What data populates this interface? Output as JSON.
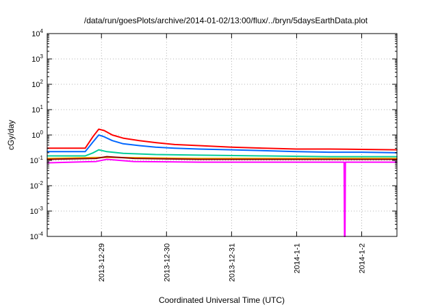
{
  "chart_data": {
    "type": "line",
    "title": "/data/run/goesPlots/archive/2014-01-02/13:00/flux/../bryn/5daysEarthData.plot",
    "xlabel": "Coordinated Universal Time (UTC)",
    "ylabel": "cGy/day",
    "yscale": "log",
    "ylim": [
      0.0001,
      10000
    ],
    "y_ticks": [
      {
        "base": "10",
        "exp": "-4"
      },
      {
        "base": "10",
        "exp": "-3"
      },
      {
        "base": "10",
        "exp": "-2"
      },
      {
        "base": "10",
        "exp": "-1"
      },
      {
        "base": "10",
        "exp": "0"
      },
      {
        "base": "10",
        "exp": "1"
      },
      {
        "base": "10",
        "exp": "2"
      },
      {
        "base": "10",
        "exp": "3"
      },
      {
        "base": "10",
        "exp": "4"
      }
    ],
    "xlim": [
      "2013-12-28 04:00",
      "2014-01-02 13:00"
    ],
    "x_ticks": [
      "2013-12-29",
      "2013-12-30",
      "2013-12-31",
      "2014-1-1",
      "2014-1-2"
    ],
    "grid": true,
    "legend": "none",
    "series": [
      {
        "color": "#ff0000",
        "x": [
          "2013-12-28 04:00",
          "2013-12-28 12:00",
          "2013-12-28 18:00",
          "2013-12-28 21:00",
          "2013-12-28 23:00",
          "2013-12-29 01:00",
          "2013-12-29 04:00",
          "2013-12-29 08:00",
          "2013-12-29 14:00",
          "2013-12-29 20:00",
          "2013-12-30 03:00",
          "2013-12-30 12:00",
          "2013-12-31 00:00",
          "2013-12-31 12:00",
          "2014-01-01 00:00",
          "2014-01-01 12:00",
          "2014-01-02 00:00",
          "2014-01-02 13:00"
        ],
        "y": [
          0.3,
          0.3,
          0.3,
          0.9,
          1.7,
          1.5,
          1.0,
          0.75,
          0.6,
          0.5,
          0.42,
          0.38,
          0.33,
          0.3,
          0.28,
          0.28,
          0.27,
          0.26
        ]
      },
      {
        "color": "#0066ff",
        "x": [
          "2013-12-28 04:00",
          "2013-12-28 12:00",
          "2013-12-28 18:00",
          "2013-12-28 21:00",
          "2013-12-28 23:00",
          "2013-12-29 01:00",
          "2013-12-29 04:00",
          "2013-12-29 08:00",
          "2013-12-29 14:00",
          "2013-12-29 20:00",
          "2013-12-30 03:00",
          "2013-12-30 12:00",
          "2013-12-31 00:00",
          "2013-12-31 12:00",
          "2014-01-01 00:00",
          "2014-01-01 12:00",
          "2014-01-02 00:00",
          "2014-01-02 13:00"
        ],
        "y": [
          0.22,
          0.22,
          0.22,
          0.55,
          1.0,
          0.85,
          0.6,
          0.45,
          0.38,
          0.33,
          0.3,
          0.28,
          0.26,
          0.24,
          0.22,
          0.21,
          0.21,
          0.2
        ]
      },
      {
        "color": "#00cc99",
        "x": [
          "2013-12-28 04:00",
          "2013-12-28 12:00",
          "2013-12-28 18:00",
          "2013-12-28 21:00",
          "2013-12-28 23:00",
          "2013-12-29 02:00",
          "2013-12-29 08:00",
          "2013-12-29 20:00",
          "2013-12-30 12:00",
          "2013-12-31 12:00",
          "2014-01-01 12:00",
          "2014-01-02 13:00"
        ],
        "y": [
          0.15,
          0.15,
          0.15,
          0.2,
          0.26,
          0.22,
          0.19,
          0.17,
          0.16,
          0.15,
          0.14,
          0.14
        ]
      },
      {
        "color": "#ffbb00",
        "x": [
          "2013-12-28 04:00",
          "2013-12-28 22:00",
          "2013-12-29 06:00",
          "2013-12-30 12:00",
          "2013-12-31 12:00",
          "2014-01-01 12:00",
          "2014-01-02 13:00"
        ],
        "y": [
          0.12,
          0.13,
          0.13,
          0.12,
          0.12,
          0.12,
          0.12
        ]
      },
      {
        "color": "#8b0000",
        "x": [
          "2013-12-28 04:00",
          "2013-12-28 22:00",
          "2013-12-29 02:00",
          "2013-12-29 12:00",
          "2013-12-30 12:00",
          "2013-12-31 12:00",
          "2014-01-01 12:00",
          "2014-01-02 13:00"
        ],
        "y": [
          0.11,
          0.12,
          0.14,
          0.12,
          0.11,
          0.11,
          0.11,
          0.11
        ]
      },
      {
        "color": "#ff00ff",
        "x": [
          "2013-12-28 04:00",
          "2013-12-28 22:00",
          "2013-12-29 02:00",
          "2013-12-29 12:00",
          "2013-12-30 12:00",
          "2013-12-31 12:00",
          "2014-01-01 12:00",
          "2014-01-01 17:30",
          "2014-01-01 17:40",
          "2014-01-01 17:50",
          "2014-01-01 18:00",
          "2014-01-02 00:00",
          "2014-01-02 13:00"
        ],
        "y": [
          0.08,
          0.09,
          0.11,
          0.09,
          0.085,
          0.085,
          0.085,
          0.085,
          0.0001,
          0.0001,
          0.085,
          0.085,
          0.085
        ]
      }
    ]
  }
}
